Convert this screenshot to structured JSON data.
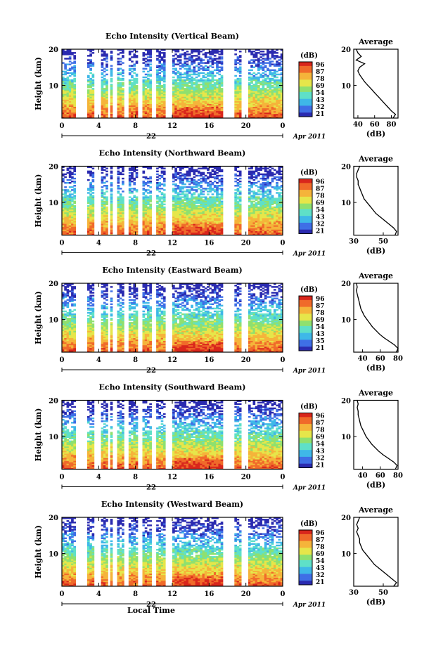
{
  "figure": {
    "date_label": "Apr 2011",
    "day_label": "22",
    "xlabel_bottom": "Local Time",
    "colorbar_unit": "(dB)",
    "colorbar_ticks": [
      "96",
      "87",
      "78",
      "69",
      "54",
      "43",
      "32",
      "21"
    ],
    "colorbar_ticks_variant": [
      "96",
      "87",
      "78",
      "69",
      "54",
      "43",
      "35",
      "21"
    ],
    "colors": {
      "scale": [
        "#2b2bb0",
        "#3f6fe6",
        "#3fb8e8",
        "#5fe0c8",
        "#8fe06f",
        "#e6e64a",
        "#f5b43a",
        "#f06a2a",
        "#d9261c"
      ],
      "missing": "#ffffff",
      "axis": "#000000"
    }
  },
  "chart_data": [
    {
      "type": "heatmap",
      "title": "Echo Intensity (Vertical Beam)",
      "xlabel": "",
      "ylabel": "Height (km)",
      "x_ticks": [
        "0",
        "4",
        "8",
        "12",
        "16",
        "20",
        "0"
      ],
      "y_ticks": [
        "10",
        "20"
      ],
      "xlim": [
        0,
        24
      ],
      "ylim": [
        1,
        20
      ],
      "zlim": [
        21,
        96
      ],
      "z_unit": "dB",
      "colorbar_ticks": [
        "96",
        "87",
        "78",
        "69",
        "54",
        "43",
        "32",
        "21"
      ],
      "data_gaps_hours": [
        [
          1.6,
          2.7
        ],
        [
          3.6,
          4.2
        ],
        [
          4.9,
          5.3
        ],
        [
          5.6,
          5.9
        ],
        [
          6.8,
          7.3
        ],
        [
          8.3,
          8.8
        ],
        [
          9.8,
          10.3
        ],
        [
          11.3,
          11.9
        ],
        [
          17.5,
          18.8
        ],
        [
          19.6,
          20.2
        ]
      ],
      "profile": {
        "title": "Average",
        "xlabel": "(dB)",
        "x_ticks": [
          "40",
          "60",
          "80"
        ],
        "xlim": [
          35,
          88
        ],
        "y_ticks": [
          "10",
          "20"
        ],
        "ylim": [
          1,
          20
        ],
        "height_km": [
          1,
          2,
          3,
          4,
          5,
          6,
          7,
          8,
          9,
          10,
          11,
          12,
          13,
          14,
          15,
          16,
          17,
          18,
          19,
          20
        ],
        "values_db": [
          82,
          85,
          80,
          76,
          72,
          68,
          64,
          60,
          56,
          52,
          48,
          45,
          42,
          40,
          42,
          48,
          38,
          44,
          40,
          38
        ]
      }
    },
    {
      "type": "heatmap",
      "title": "Echo Intensity (Northward Beam)",
      "xlabel": "",
      "ylabel": "Height (km)",
      "x_ticks": [
        "0",
        "4",
        "8",
        "12",
        "16",
        "20",
        "0"
      ],
      "y_ticks": [
        "10",
        "20"
      ],
      "xlim": [
        0,
        24
      ],
      "ylim": [
        1,
        20
      ],
      "zlim": [
        21,
        96
      ],
      "z_unit": "dB",
      "colorbar_ticks": [
        "96",
        "87",
        "78",
        "69",
        "54",
        "43",
        "32",
        "21"
      ],
      "data_gaps_hours": [
        [
          1.6,
          2.7
        ],
        [
          3.6,
          4.2
        ],
        [
          4.9,
          5.3
        ],
        [
          5.6,
          5.9
        ],
        [
          6.8,
          7.3
        ],
        [
          8.3,
          8.8
        ],
        [
          9.8,
          10.3
        ],
        [
          11.3,
          11.9
        ],
        [
          17.5,
          18.8
        ],
        [
          19.6,
          20.2
        ]
      ],
      "profile": {
        "title": "Average",
        "xlabel": "(dB)",
        "x_ticks": [
          "30",
          "50"
        ],
        "xlim": [
          30,
          60
        ],
        "y_ticks": [
          "10",
          "20"
        ],
        "ylim": [
          1,
          20
        ],
        "height_km": [
          1,
          2,
          3,
          4,
          5,
          6,
          7,
          8,
          9,
          10,
          11,
          12,
          13,
          14,
          15,
          16,
          17,
          18,
          19,
          20
        ],
        "values_db": [
          58,
          59,
          57,
          54,
          51,
          48,
          45,
          43,
          41,
          39,
          37,
          36,
          35,
          34,
          33,
          33,
          32,
          32,
          33,
          34
        ]
      }
    },
    {
      "type": "heatmap",
      "title": "Echo Intensity (Eastward Beam)",
      "xlabel": "",
      "ylabel": "Height (km)",
      "x_ticks": [
        "0",
        "4",
        "8",
        "12",
        "16",
        "20",
        "0"
      ],
      "y_ticks": [
        "10",
        "20"
      ],
      "xlim": [
        0,
        24
      ],
      "ylim": [
        1,
        20
      ],
      "zlim": [
        21,
        96
      ],
      "z_unit": "dB",
      "colorbar_ticks": [
        "96",
        "87",
        "78",
        "69",
        "54",
        "43",
        "35",
        "21"
      ],
      "data_gaps_hours": [
        [
          1.6,
          2.7
        ],
        [
          3.6,
          4.2
        ],
        [
          4.9,
          5.3
        ],
        [
          5.6,
          5.9
        ],
        [
          6.8,
          7.3
        ],
        [
          8.3,
          8.8
        ],
        [
          9.8,
          10.3
        ],
        [
          11.3,
          11.9
        ],
        [
          17.5,
          18.8
        ],
        [
          19.6,
          20.2
        ]
      ],
      "profile": {
        "title": "Average",
        "xlabel": "(dB)",
        "x_ticks": [
          "40",
          "60",
          "80"
        ],
        "xlim": [
          30,
          80
        ],
        "y_ticks": [
          "10",
          "20"
        ],
        "ylim": [
          1,
          20
        ],
        "height_km": [
          1,
          2,
          3,
          4,
          5,
          6,
          7,
          8,
          9,
          10,
          11,
          12,
          13,
          14,
          15,
          16,
          17,
          18,
          19,
          20
        ],
        "values_db": [
          78,
          80,
          76,
          70,
          64,
          59,
          55,
          51,
          48,
          45,
          42,
          40,
          38,
          37,
          36,
          35,
          34,
          33,
          34,
          33
        ]
      }
    },
    {
      "type": "heatmap",
      "title": "Echo Intensity (Southward Beam)",
      "xlabel": "",
      "ylabel": "Height (km)",
      "x_ticks": [
        "0",
        "4",
        "8",
        "12",
        "16",
        "20",
        "0"
      ],
      "y_ticks": [
        "10",
        "20"
      ],
      "xlim": [
        0,
        24
      ],
      "ylim": [
        1,
        20
      ],
      "zlim": [
        21,
        96
      ],
      "z_unit": "dB",
      "colorbar_ticks": [
        "96",
        "87",
        "78",
        "69",
        "54",
        "43",
        "32",
        "21"
      ],
      "data_gaps_hours": [
        [
          1.6,
          2.7
        ],
        [
          3.6,
          4.2
        ],
        [
          4.9,
          5.3
        ],
        [
          5.6,
          5.9
        ],
        [
          6.8,
          7.3
        ],
        [
          8.3,
          8.8
        ],
        [
          9.8,
          10.3
        ],
        [
          11.3,
          11.9
        ],
        [
          17.5,
          18.8
        ],
        [
          19.6,
          20.2
        ]
      ],
      "profile": {
        "title": "Average",
        "xlabel": "(dB)",
        "x_ticks": [
          "40",
          "60",
          "80"
        ],
        "xlim": [
          30,
          80
        ],
        "y_ticks": [
          "10",
          "20"
        ],
        "ylim": [
          1,
          20
        ],
        "height_km": [
          1,
          2,
          3,
          4,
          5,
          6,
          7,
          8,
          9,
          10,
          11,
          12,
          13,
          14,
          15,
          16,
          17,
          18,
          19,
          20
        ],
        "values_db": [
          77,
          79,
          75,
          69,
          63,
          58,
          54,
          50,
          47,
          44,
          42,
          40,
          38,
          37,
          36,
          35,
          35,
          34,
          35,
          34
        ]
      }
    },
    {
      "type": "heatmap",
      "title": "Echo Intensity (Westward Beam)",
      "xlabel": "Local Time",
      "ylabel": "Height (km)",
      "x_ticks": [
        "0",
        "4",
        "8",
        "12",
        "16",
        "20",
        "0"
      ],
      "y_ticks": [
        "10",
        "20"
      ],
      "xlim": [
        0,
        24
      ],
      "ylim": [
        1,
        20
      ],
      "zlim": [
        21,
        96
      ],
      "z_unit": "dB",
      "colorbar_ticks": [
        "96",
        "87",
        "78",
        "69",
        "54",
        "43",
        "32",
        "21"
      ],
      "data_gaps_hours": [
        [
          1.6,
          2.7
        ],
        [
          3.6,
          4.2
        ],
        [
          4.9,
          5.3
        ],
        [
          5.6,
          5.9
        ],
        [
          6.8,
          7.3
        ],
        [
          8.3,
          8.8
        ],
        [
          9.8,
          10.3
        ],
        [
          11.3,
          11.9
        ],
        [
          17.5,
          18.8
        ],
        [
          19.6,
          20.2
        ]
      ],
      "profile": {
        "title": "Average",
        "xlabel": "(dB)",
        "x_ticks": [
          "30",
          "50"
        ],
        "xlim": [
          30,
          60
        ],
        "y_ticks": [
          "10",
          "20"
        ],
        "ylim": [
          1,
          20
        ],
        "height_km": [
          1,
          2,
          3,
          4,
          5,
          6,
          7,
          8,
          9,
          10,
          11,
          12,
          13,
          14,
          15,
          16,
          17,
          18,
          19,
          20
        ],
        "values_db": [
          57,
          59,
          56,
          53,
          50,
          47,
          44,
          42,
          40,
          38,
          36,
          35,
          34,
          34,
          33,
          32,
          33,
          32,
          33,
          34
        ]
      }
    }
  ]
}
